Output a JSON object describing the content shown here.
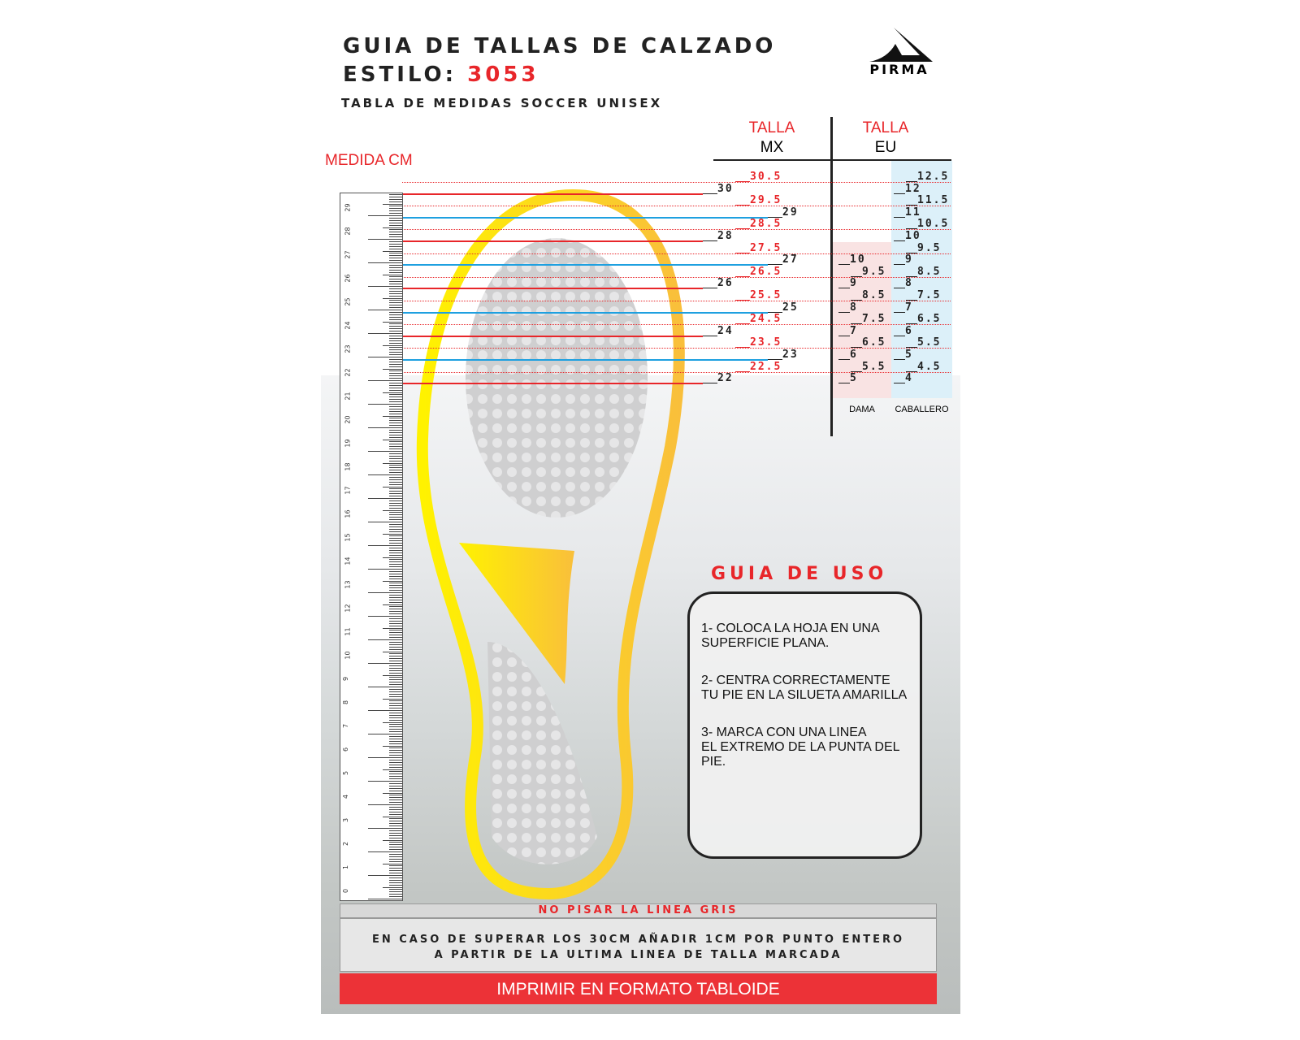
{
  "header": {
    "title": "GUIA DE TALLAS DE CALZADO",
    "style_label": "ESTILO:",
    "style_code": "3053",
    "subtitle": "TABLA DE MEDIDAS SOCCER UNISEX",
    "brand": "PIRMA"
  },
  "columns": {
    "measure": "MEDIDA CM",
    "mx_top": "TALLA",
    "mx_bottom": "MX",
    "eu_top": "TALLA",
    "eu_bottom": "EU",
    "dama": "DAMA",
    "caballero": "CABALLERO"
  },
  "mx_sizes": [
    "30.5",
    "30",
    "29.5",
    "29",
    "28.5",
    "28",
    "27.5",
    "27",
    "26.5",
    "26",
    "25.5",
    "25",
    "24.5",
    "24",
    "23.5",
    "23",
    "22.5",
    "22"
  ],
  "eu_caballero": [
    "12.5",
    "12",
    "11.5",
    "11",
    "10.5",
    "10",
    "9.5",
    "9",
    "8.5",
    "8",
    "7.5",
    "7",
    "6.5",
    "6",
    "5.5",
    "5",
    "4.5",
    "4"
  ],
  "eu_dama": [
    "10",
    "9.5",
    "9",
    "8.5",
    "8",
    "7.5",
    "7",
    "6.5",
    "6",
    "5.5",
    "5"
  ],
  "ruler": {
    "max_cm": 30
  },
  "guide": {
    "title": "GUIA DE USO",
    "steps": [
      "1- COLOCA LA HOJA EN UNA\nSUPERFICIE PLANA.",
      "2- CENTRA CORRECTAMENTE\n TU PIE EN LA SILUETA AMARILLA",
      "3- MARCA CON UNA LINEA\nEL EXTREMO DE LA PUNTA DEL\nPIE."
    ]
  },
  "footer": {
    "warning": "NO PISAR LA LINEA GRIS",
    "note_line1": "EN CASO DE SUPERAR LOS 30CM AÑADIR 1CM POR PUNTO ENTERO",
    "note_line2": "A PARTIR DE LA ULTIMA LINEA DE TALLA MARCADA",
    "print": "IMPRIMIR EN FORMATO TABLOIDE"
  },
  "colors": {
    "red": "#e8262a",
    "blue": "#1ea0e0",
    "yellow": "#f7d21e",
    "dama_bg": "#f9e3e3",
    "caballero_bg": "#dcefF8"
  }
}
